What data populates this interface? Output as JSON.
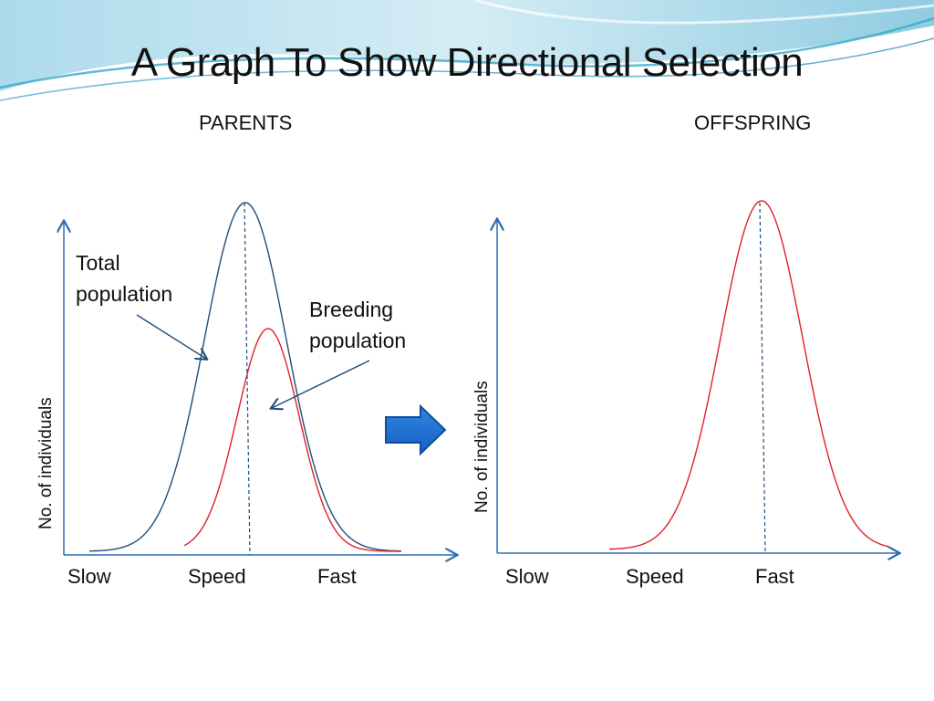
{
  "slide": {
    "title": "A Graph To Show Directional Selection",
    "arrow_icon": "right-arrow-icon",
    "colors": {
      "total_curve": "#1f4e79",
      "breeding_curve": "#e0202a",
      "axis": "#2e6fb3",
      "arrow": "#1f6fd0"
    }
  },
  "parents": {
    "heading": "PARENTS",
    "y_axis_label": "No. of individuals",
    "x_labels": {
      "slow": "Slow",
      "speed": "Speed",
      "fast": "Fast"
    },
    "callouts": {
      "total_line1": "Total",
      "total_line2": "population",
      "breeding_line1": "Breeding",
      "breeding_line2": "population"
    }
  },
  "offspring": {
    "heading": "OFFSPRING",
    "y_axis_label": "No. of individuals",
    "x_labels": {
      "slow": "Slow",
      "speed": "Speed",
      "fast": "Fast"
    }
  }
}
